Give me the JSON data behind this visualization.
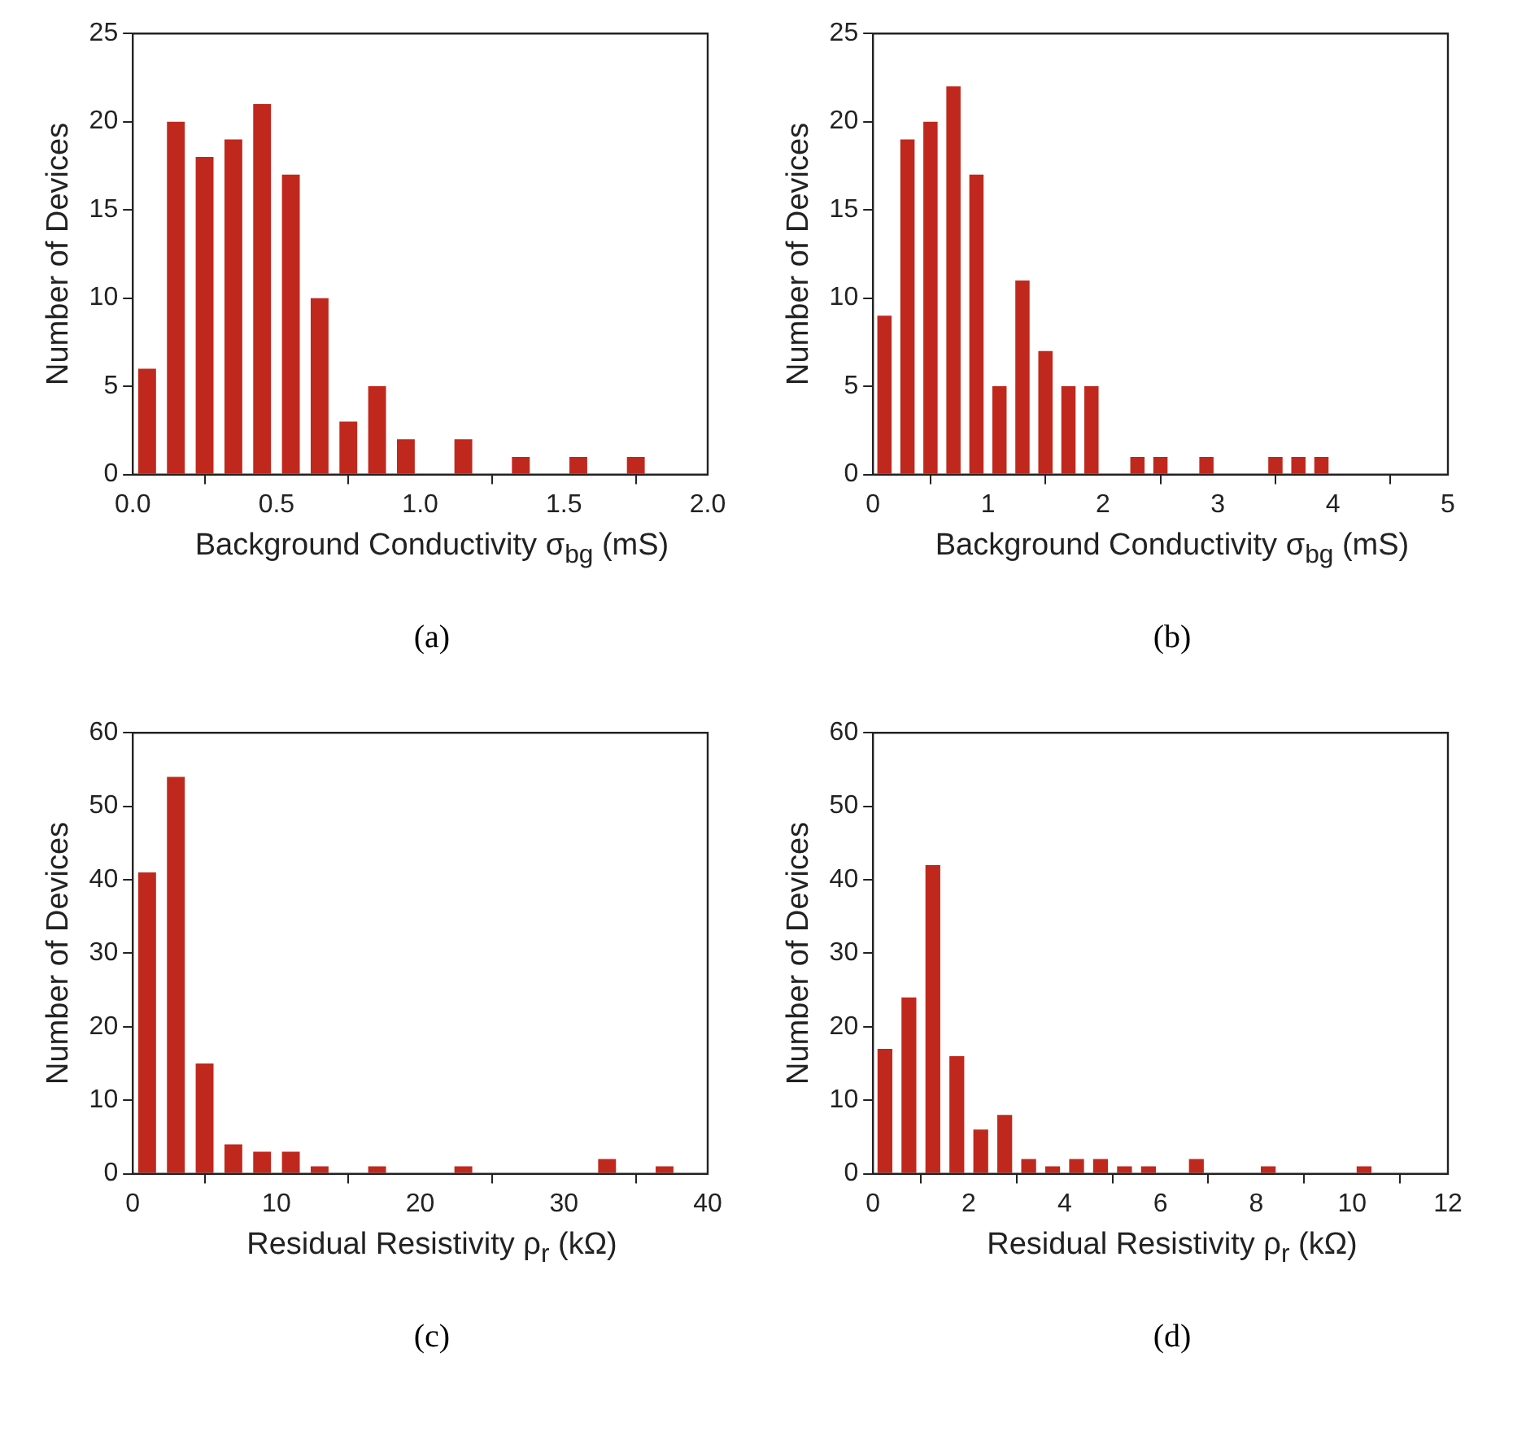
{
  "chart_data": [
    {
      "type": "histogram",
      "bins": [
        0,
        0.1,
        0.2,
        0.3,
        0.4,
        0.5,
        0.6,
        0.7,
        0.8,
        0.9,
        1.0,
        1.1,
        1.2,
        1.3,
        1.4,
        1.5,
        1.6,
        1.7,
        1.8
      ],
      "values": [
        6,
        20,
        18,
        19,
        21,
        17,
        10,
        3,
        5,
        2,
        0,
        2,
        0,
        1,
        0,
        1,
        0,
        1
      ],
      "color": "#c0281e",
      "xlabel": "Background Conductivity σ$_{bg}$ (mS)",
      "ylabel": "Number of Devices",
      "xlim": [
        0,
        2
      ],
      "xticks": [
        {
          "value": 0,
          "label": "0.0"
        },
        0.5,
        {
          "value": 1,
          "label": "1.0"
        },
        1.5,
        {
          "value": 2,
          "label": "2.0"
        }
      ],
      "ylim": [
        0,
        25
      ],
      "yticks": [
        0,
        5,
        10,
        15,
        20,
        25
      ],
      "annotations": [
        "(a)"
      ]
    },
    {
      "type": "histogram",
      "bins": [
        0,
        0.2,
        0.4,
        0.6,
        0.8,
        1.0,
        1.2,
        1.4,
        1.6,
        1.8,
        2.0,
        2.2,
        2.4,
        2.6,
        2.8,
        3.0,
        3.2,
        3.4,
        3.6,
        3.8,
        4.0
      ],
      "values": [
        9,
        19,
        20,
        22,
        17,
        5,
        11,
        7,
        5,
        5,
        0,
        1,
        1,
        0,
        1,
        0,
        0,
        1,
        1,
        1
      ],
      "color": "#c0281e",
      "xlabel": "Background Conductivity σ$_{bg}$ (mS)",
      "ylabel": "Number of Devices",
      "xlim": [
        0,
        5
      ],
      "xticks": [
        0,
        1,
        2,
        3,
        4,
        5
      ],
      "ylim": [
        0,
        25
      ],
      "yticks": [
        0,
        5,
        10,
        15,
        20,
        25
      ],
      "annotations": [
        "(b)"
      ]
    },
    {
      "type": "histogram",
      "bins": [
        0,
        2,
        4,
        6,
        8,
        10,
        12,
        14,
        16,
        18,
        20,
        22,
        24,
        26,
        28,
        30,
        32,
        34,
        36,
        38
      ],
      "values": [
        41,
        54,
        15,
        4,
        3,
        3,
        1,
        0,
        1,
        0,
        0,
        1,
        0,
        0,
        0,
        0,
        2,
        0,
        1
      ],
      "color": "#c0281e",
      "xlabel": "Residual Resistivity ρ$_{r}$ (kΩ)",
      "ylabel": "Number of Devices",
      "xlim": [
        0,
        40
      ],
      "xticks": [
        0,
        10,
        20,
        30,
        40
      ],
      "ylim": [
        0,
        60
      ],
      "yticks": [
        0,
        10,
        20,
        30,
        40,
        50,
        60
      ],
      "annotations": [
        "(c)"
      ]
    },
    {
      "type": "histogram",
      "bins": [
        0,
        0.5,
        1,
        1.5,
        2,
        2.5,
        3,
        3.5,
        4,
        4.5,
        5,
        5.5,
        6,
        6.5,
        7,
        7.5,
        8,
        8.5,
        9,
        9.5,
        10,
        10.5
      ],
      "values": [
        17,
        24,
        42,
        16,
        6,
        8,
        2,
        1,
        2,
        2,
        1,
        1,
        0,
        2,
        0,
        0,
        1,
        0,
        0,
        0,
        1
      ],
      "color": "#c0281e",
      "xlabel": "Residual Resistivity ρ$_{r}$ (kΩ)",
      "ylabel": "Number of Devices",
      "xlim": [
        0,
        12
      ],
      "xticks": [
        0,
        2,
        4,
        6,
        8,
        10,
        12
      ],
      "ylim": [
        0,
        60
      ],
      "yticks": [
        0,
        10,
        20,
        30,
        40,
        50,
        60
      ],
      "annotations": [
        "(d)"
      ]
    }
  ]
}
